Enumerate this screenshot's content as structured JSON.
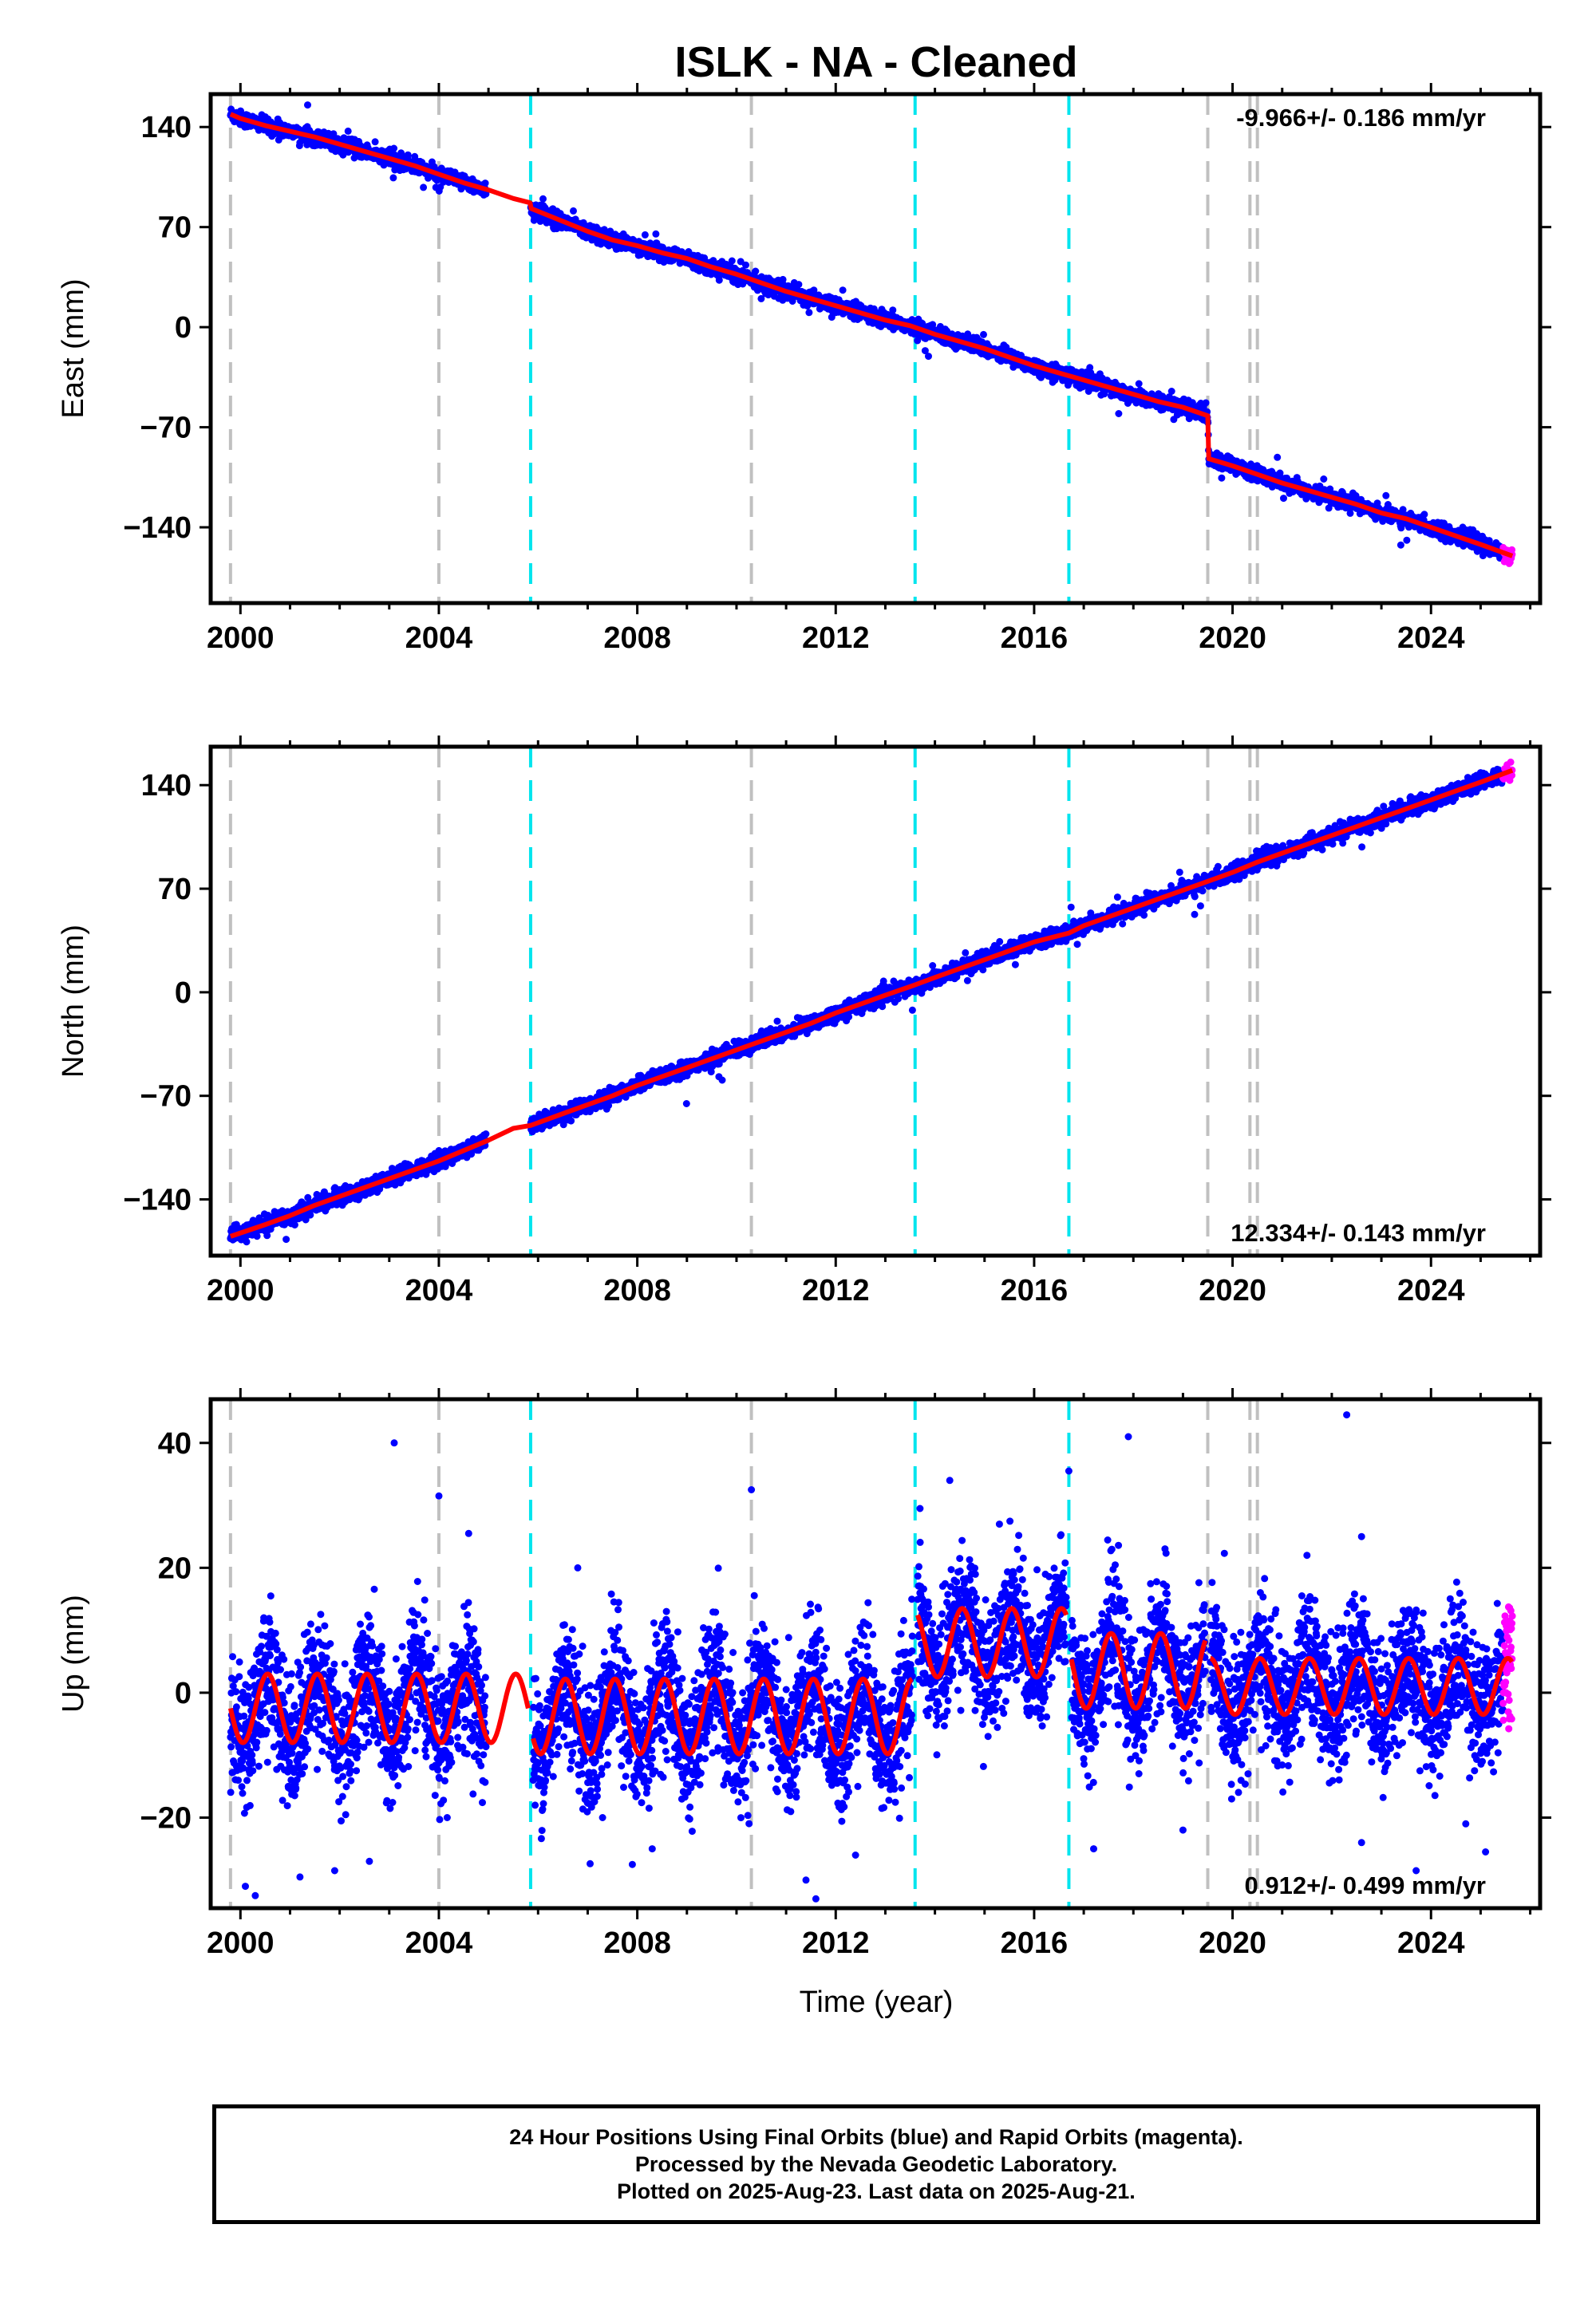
{
  "chart_data": {
    "type": "scatter",
    "title": "ISLK  - NA - Cleaned",
    "xlabel": "Time (year)",
    "xlim": [
      1999.4,
      2026.2
    ],
    "x_ticks": [
      2000,
      2004,
      2008,
      2012,
      2016,
      2020,
      2024
    ],
    "x_tick_labels": [
      "2000",
      "2004",
      "2008",
      "2012",
      "2016",
      "2020",
      "2024"
    ],
    "data_span": [
      1999.8,
      2025.64
    ],
    "rapid_orbit_span": [
      2025.45,
      2025.64
    ],
    "grid": false,
    "vertical_markers": {
      "gray_dashed": [
        1999.8,
        2004.0,
        2010.3,
        2019.5,
        2020.35,
        2020.5
      ],
      "cyan_dashed": [
        2005.85,
        2013.6,
        2016.7
      ]
    },
    "series_colors": {
      "final_orbits": "#0000ff",
      "rapid_orbits": "#ff00ff",
      "model": "#ff0000",
      "gray_marker": "#c0c0c0",
      "cyan_marker": "#00e5ee"
    },
    "panels": [
      {
        "id": "east",
        "ylabel": "East (mm)",
        "ylim": [
          -193,
          163
        ],
        "y_ticks": [
          140,
          70,
          0,
          -70,
          -140
        ],
        "y_tick_labels": [
          "140",
          "70",
          "0",
          "−70",
          "−140"
        ],
        "rate_label": "-9.966+/- 0.186 mm/yr",
        "rate_position": "top-right",
        "model_points": [
          [
            1999.8,
            149
          ],
          [
            2000.0,
            146
          ],
          [
            2000.5,
            141
          ],
          [
            2001.0,
            137
          ],
          [
            2001.5,
            133
          ],
          [
            2002.0,
            128
          ],
          [
            2002.5,
            123
          ],
          [
            2003.0,
            118
          ],
          [
            2003.5,
            113
          ],
          [
            2004.0,
            107
          ],
          [
            2004.5,
            101
          ],
          [
            2005.0,
            96
          ],
          [
            2005.5,
            90
          ],
          [
            2005.84,
            87
          ],
          [
            2005.86,
            83
          ],
          [
            2006.5,
            74
          ],
          [
            2007.0,
            67
          ],
          [
            2007.5,
            61
          ],
          [
            2008.0,
            57
          ],
          [
            2008.5,
            52
          ],
          [
            2009.0,
            48
          ],
          [
            2009.5,
            42
          ],
          [
            2010.0,
            37
          ],
          [
            2010.5,
            31
          ],
          [
            2011.0,
            25
          ],
          [
            2011.5,
            20
          ],
          [
            2012.0,
            15
          ],
          [
            2012.5,
            10
          ],
          [
            2013.0,
            5
          ],
          [
            2013.5,
            1
          ],
          [
            2014.0,
            -5
          ],
          [
            2014.5,
            -10
          ],
          [
            2015.0,
            -15
          ],
          [
            2015.5,
            -21
          ],
          [
            2016.0,
            -27
          ],
          [
            2016.5,
            -32
          ],
          [
            2017.0,
            -37
          ],
          [
            2017.5,
            -42
          ],
          [
            2018.0,
            -47
          ],
          [
            2018.5,
            -52
          ],
          [
            2019.0,
            -56
          ],
          [
            2019.5,
            -62
          ],
          [
            2019.52,
            -92
          ],
          [
            2020.0,
            -97
          ],
          [
            2020.5,
            -103
          ],
          [
            2021.0,
            -109
          ],
          [
            2021.5,
            -114
          ],
          [
            2022.0,
            -119
          ],
          [
            2022.5,
            -124
          ],
          [
            2023.0,
            -130
          ],
          [
            2023.5,
            -134
          ],
          [
            2024.0,
            -140
          ],
          [
            2024.5,
            -146
          ],
          [
            2025.0,
            -152
          ],
          [
            2025.64,
            -160
          ]
        ]
      },
      {
        "id": "north",
        "ylabel": "North (mm)",
        "ylim": [
          -178,
          166
        ],
        "y_ticks": [
          140,
          70,
          0,
          -70,
          -140
        ],
        "y_tick_labels": [
          "140",
          "70",
          "0",
          "−70",
          "−140"
        ],
        "rate_label": "12.334+/- 0.143 mm/yr",
        "rate_position": "bottom-right",
        "model_points": [
          [
            1999.8,
            -165
          ],
          [
            2000.5,
            -157
          ],
          [
            2001.0,
            -151
          ],
          [
            2001.5,
            -144
          ],
          [
            2002.0,
            -138
          ],
          [
            2002.5,
            -132
          ],
          [
            2003.0,
            -126
          ],
          [
            2003.5,
            -120
          ],
          [
            2004.0,
            -114
          ],
          [
            2004.5,
            -107
          ],
          [
            2005.0,
            -100
          ],
          [
            2005.5,
            -92
          ],
          [
            2005.85,
            -90
          ],
          [
            2006.5,
            -82
          ],
          [
            2007.0,
            -76
          ],
          [
            2007.5,
            -70
          ],
          [
            2008.0,
            -63
          ],
          [
            2008.5,
            -57
          ],
          [
            2009.0,
            -51
          ],
          [
            2009.5,
            -45
          ],
          [
            2010.0,
            -39
          ],
          [
            2010.5,
            -33
          ],
          [
            2011.0,
            -27
          ],
          [
            2011.5,
            -21
          ],
          [
            2012.0,
            -14
          ],
          [
            2012.5,
            -8
          ],
          [
            2013.0,
            -2
          ],
          [
            2013.6,
            5
          ],
          [
            2014.0,
            10
          ],
          [
            2014.5,
            16
          ],
          [
            2015.0,
            22
          ],
          [
            2015.5,
            28
          ],
          [
            2016.0,
            34
          ],
          [
            2016.7,
            40
          ],
          [
            2017.0,
            45
          ],
          [
            2017.5,
            51
          ],
          [
            2018.0,
            57
          ],
          [
            2018.5,
            63
          ],
          [
            2019.0,
            69
          ],
          [
            2019.5,
            75
          ],
          [
            2020.0,
            81
          ],
          [
            2020.5,
            88
          ],
          [
            2021.0,
            94
          ],
          [
            2021.5,
            100
          ],
          [
            2022.0,
            106
          ],
          [
            2022.5,
            112
          ],
          [
            2023.0,
            118
          ],
          [
            2023.5,
            124
          ],
          [
            2024.0,
            130
          ],
          [
            2024.5,
            136
          ],
          [
            2025.0,
            142
          ],
          [
            2025.64,
            150
          ]
        ]
      },
      {
        "id": "up",
        "ylabel": "Up (mm)",
        "ylim": [
          -34.5,
          47
        ],
        "y_ticks": [
          40,
          20,
          0,
          -20
        ],
        "y_tick_labels": [
          "40",
          "20",
          "0",
          "−20"
        ],
        "rate_label": "0.912+/- 0.499 mm/yr",
        "rate_position": "bottom-right",
        "model_segments": [
          {
            "x": [
              1999.8,
              2005.8
            ],
            "offset": -2.5,
            "amplitude": 5.5
          },
          {
            "x": [
              2005.9,
              2013.55
            ],
            "offset": -3.8,
            "amplitude": 6.0
          },
          {
            "x": [
              2013.65,
              2016.65
            ],
            "offset": 8.0,
            "amplitude": 5.5
          },
          {
            "x": [
              2016.75,
              2019.45
            ],
            "offset": 3.5,
            "amplitude": 6.0
          },
          {
            "x": [
              2019.55,
              2025.64
            ],
            "offset": 1.0,
            "amplitude": 4.5
          }
        ],
        "outliers": [
          [
            2003.1,
            40
          ],
          [
            2004.0,
            31.5
          ],
          [
            2004.6,
            25.5
          ],
          [
            2006.8,
            20
          ],
          [
            2007.3,
            -20
          ],
          [
            2007.9,
            -27.5
          ],
          [
            2008.3,
            -25
          ],
          [
            2010.3,
            32.5
          ],
          [
            2011.4,
            -30
          ],
          [
            2011.6,
            -33
          ],
          [
            2013.7,
            29.5
          ],
          [
            2014.3,
            34
          ],
          [
            2016.7,
            35.5
          ],
          [
            2017.2,
            -25
          ],
          [
            2017.9,
            41
          ],
          [
            2019.0,
            -22
          ],
          [
            2021.5,
            22
          ],
          [
            2022.3,
            44.5
          ],
          [
            2022.6,
            -24
          ],
          [
            2022.6,
            25
          ],
          [
            2023.7,
            -28.5
          ],
          [
            2024.7,
            -21
          ],
          [
            2025.1,
            -25.5
          ],
          [
            2000.3,
            -32.5
          ],
          [
            2001.2,
            -29.5
          ],
          [
            2001.9,
            -28.5
          ],
          [
            2002.6,
            -27
          ],
          [
            2000.1,
            -31
          ],
          [
            2012.4,
            -26
          ],
          [
            2015.3,
            27
          ]
        ]
      }
    ]
  },
  "caption": {
    "line1": "24 Hour Positions Using Final Orbits (blue) and Rapid Orbits (magenta).",
    "line2": "Processed by the Nevada Geodetic Laboratory.",
    "line3": "Plotted on 2025-Aug-23. Last data on 2025-Aug-21."
  }
}
